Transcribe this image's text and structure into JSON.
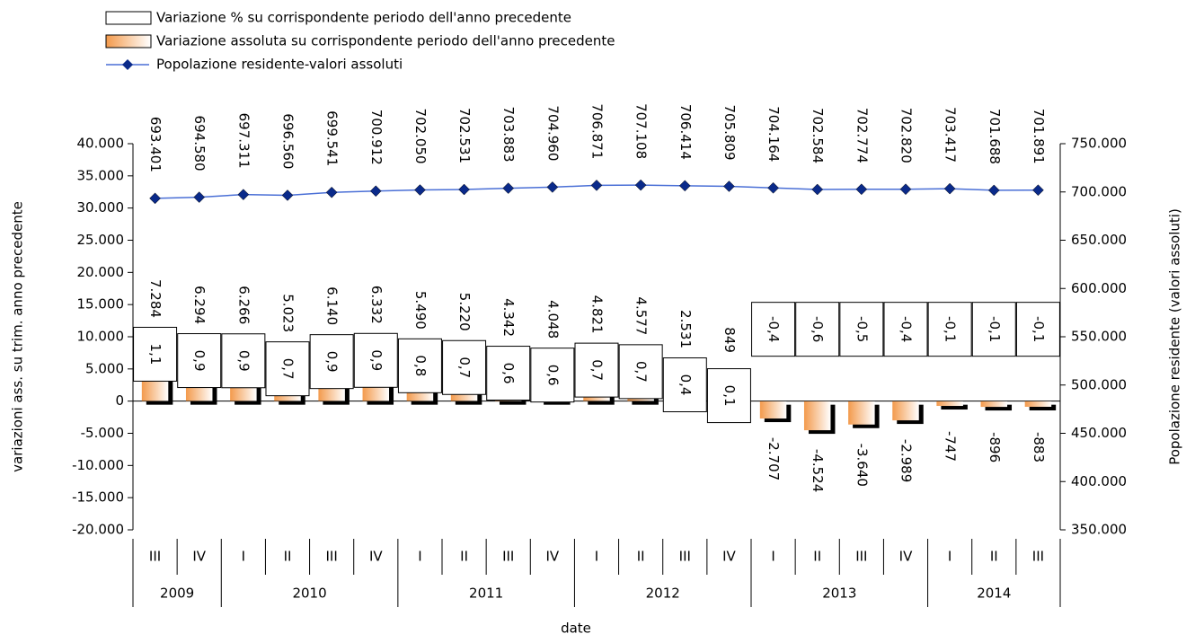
{
  "chart_data": {
    "type": "bar_line",
    "categories": [
      "III",
      "IV",
      "I",
      "II",
      "III",
      "IV",
      "I",
      "II",
      "III",
      "IV",
      "I",
      "II",
      "III",
      "IV",
      "I",
      "II",
      "III",
      "IV",
      "I",
      "II",
      "III"
    ],
    "groups": [
      {
        "label": "2009",
        "span": 2
      },
      {
        "label": "2010",
        "span": 4
      },
      {
        "label": "2011",
        "span": 4
      },
      {
        "label": "2012",
        "span": 4
      },
      {
        "label": "2013",
        "span": 4
      },
      {
        "label": "2014",
        "span": 3
      }
    ],
    "xlabel": "date",
    "ylabel": "variazioni ass. su trim. anno precedente",
    "y2label": "Popolazione residente (valori assoluti)",
    "ylim": [
      -20000,
      40000
    ],
    "yticks": [
      {
        "value": -20000,
        "label": "-20.000"
      },
      {
        "value": -15000,
        "label": "-15.000"
      },
      {
        "value": -10000,
        "label": "-10.000"
      },
      {
        "value": -5000,
        "label": "-5.000"
      },
      0,
      {
        "value": 5000,
        "label": "5.000"
      },
      {
        "value": 10000,
        "label": "10.000"
      },
      {
        "value": 15000,
        "label": "15.000"
      },
      {
        "value": 20000,
        "label": "20.000"
      },
      {
        "value": 25000,
        "label": "25.000"
      },
      {
        "value": 30000,
        "label": "30.000"
      },
      {
        "value": 35000,
        "label": "35.000"
      },
      {
        "value": 40000,
        "label": "40.000"
      }
    ],
    "y2lim": [
      350000,
      750000
    ],
    "y2ticks": [
      {
        "value": 350000,
        "label": "350.000"
      },
      {
        "value": 400000,
        "label": "400.000"
      },
      {
        "value": 450000,
        "label": "450.000"
      },
      {
        "value": 500000,
        "label": "500.000"
      },
      {
        "value": 550000,
        "label": "550.000"
      },
      {
        "value": 600000,
        "label": "600.000"
      },
      {
        "value": 650000,
        "label": "650.000"
      },
      {
        "value": 700000,
        "label": "700.000"
      },
      {
        "value": 750000,
        "label": "750.000"
      }
    ],
    "series": [
      {
        "name": "Variazione % su corrispondente periodo dell'anno precedente",
        "kind": "box",
        "color": "#ffffff",
        "values": [
          1.1,
          0.9,
          0.9,
          0.7,
          0.9,
          0.9,
          0.8,
          0.7,
          0.6,
          0.6,
          0.7,
          0.7,
          0.4,
          0.1,
          -0.4,
          -0.6,
          -0.5,
          -0.4,
          -0.1,
          -0.1,
          -0.1
        ],
        "value_labels": [
          "1,1",
          "0,9",
          "0,9",
          "0,7",
          "0,9",
          "0,9",
          "0,8",
          "0,7",
          "0,6",
          "0,6",
          "0,7",
          "0,7",
          "0,4",
          "0,1",
          "-0,4",
          "-0,6",
          "-0,5",
          "-0,4",
          "-0,1",
          "-0,1",
          "-0,1"
        ]
      },
      {
        "name": "Variazione assoluta su corrispondente periodo dell'anno precedente",
        "kind": "bar",
        "color": "#f39a4c",
        "values": [
          7284,
          6294,
          6266,
          5023,
          6140,
          6332,
          5490,
          5220,
          4342,
          4048,
          4821,
          4577,
          2531,
          849,
          -2707,
          -4524,
          -3640,
          -2989,
          -747,
          -896,
          -883
        ],
        "value_labels": [
          "7.284",
          "6.294",
          "6.266",
          "5.023",
          "6.140",
          "6.332",
          "5.490",
          "5.220",
          "4.342",
          "4.048",
          "4.821",
          "4.577",
          "2.531",
          "849",
          "-2.707",
          "-4.524",
          "-3.640",
          "-2.989",
          "-747",
          "-896",
          "-883"
        ]
      },
      {
        "name": "Popolazione residente-valori assoluti",
        "kind": "line",
        "axis": "y2",
        "color": "#4a6fd6",
        "marker_color": "#0a2a8a",
        "values": [
          693401,
          694580,
          697311,
          696560,
          699541,
          700912,
          702050,
          702531,
          703883,
          704960,
          706871,
          707108,
          706414,
          705809,
          704164,
          702584,
          702774,
          702820,
          703417,
          701688,
          701891
        ],
        "value_labels": [
          "693.401",
          "694.580",
          "697.311",
          "696.560",
          "699.541",
          "700.912",
          "702.050",
          "702.531",
          "703.883",
          "704.960",
          "706.871",
          "707.108",
          "706.414",
          "705.809",
          "704.164",
          "702.584",
          "702.774",
          "702.820",
          "703.417",
          "701.688",
          "701.891"
        ]
      }
    ]
  }
}
